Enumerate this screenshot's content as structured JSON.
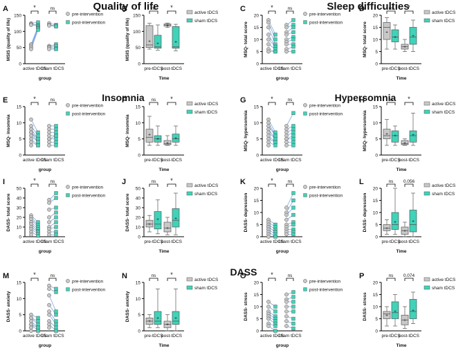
{
  "figure": {
    "section_titles": [
      "Quality of life",
      "Sleep difficulties",
      "Insomnia",
      "Hypersomnia",
      "DASS"
    ],
    "legend_paired": {
      "pre": "pre-intervention",
      "post": "post-intervention"
    },
    "legend_box": {
      "active": "active tDCS",
      "sham": "sham tDCS"
    },
    "colors": {
      "pre": "#c8c8c8",
      "post": "#3fd3b9",
      "line": "#7ea6e0",
      "edge": "#555555"
    }
  },
  "chart_data": [
    {
      "panel": "A",
      "type": "scatter",
      "title": "Quality of life",
      "ylabel": "MSIS (quality of life)",
      "xlabel": "group",
      "ylim": [
        0,
        150
      ],
      "yticks": [
        0,
        50,
        100,
        150
      ],
      "groups": [
        "active tDCS",
        "sham tDCS"
      ],
      "series": [
        {
          "group": "active tDCS",
          "pre": [
            125,
            122,
            120,
            60,
            55,
            50,
            45
          ],
          "post": [
            128,
            120,
            117,
            115,
            112,
            110,
            105
          ]
        },
        {
          "group": "sham tDCS",
          "pre": [
            125,
            120,
            118,
            55,
            52,
            50,
            45
          ],
          "post": [
            120,
            118,
            115,
            60,
            55,
            48,
            45
          ]
        }
      ],
      "sig": [
        "*",
        "ns"
      ]
    },
    {
      "panel": "B",
      "type": "box",
      "ylabel": "MSIS (quality of life)",
      "xlabel": "Time",
      "ylim": [
        0,
        150
      ],
      "yticks": [
        0,
        50,
        100,
        150
      ],
      "categories": [
        "pre-tDCS",
        "post-tDCS"
      ],
      "series": [
        {
          "name": "active tDCS",
          "boxes": [
            [
              45,
              50,
              58,
              118,
              125
            ],
            [
              112,
              116,
              120,
              123,
              126
            ]
          ]
        },
        {
          "name": "sham tDCS",
          "boxes": [
            [
              42,
              48,
              52,
              88,
              120
            ],
            [
              40,
              48,
              52,
              115,
              122
            ]
          ]
        }
      ],
      "means": [
        [
          70,
          62
        ],
        [
          118,
          68
        ]
      ],
      "sig": [
        "ns",
        "*"
      ]
    },
    {
      "panel": "C",
      "type": "scatter",
      "title": "Sleep difficulties",
      "ylabel": "MSQ- total score",
      "xlabel": "group",
      "ylim": [
        0,
        20
      ],
      "yticks": [
        0,
        5,
        10,
        15,
        20
      ],
      "groups": [
        "active tDCS",
        "sham tDCS"
      ],
      "series": [
        {
          "group": "active tDCS",
          "pre": [
            18,
            17,
            15,
            12,
            10,
            8,
            6,
            5
          ],
          "post": [
            12,
            10,
            8,
            7,
            7,
            6,
            5,
            5
          ]
        },
        {
          "group": "sham tDCS",
          "pre": [
            16,
            15,
            13,
            12,
            10,
            9,
            8,
            6,
            5
          ],
          "post": [
            18,
            16,
            15,
            13,
            11,
            10,
            8,
            7,
            5
          ]
        }
      ],
      "sig": [
        "*",
        "ns"
      ]
    },
    {
      "panel": "D",
      "type": "box",
      "ylabel": "MSQ- total score",
      "xlabel": "Time",
      "ylim": [
        0,
        20
      ],
      "yticks": [
        0,
        5,
        10,
        15,
        20
      ],
      "categories": [
        "pre-tDCS",
        "post-tDCS"
      ],
      "series": [
        {
          "name": "active tDCS",
          "boxes": [
            [
              6,
              10,
              15,
              17,
              19
            ],
            [
              5,
              6,
              7,
              8,
              10
            ]
          ]
        },
        {
          "name": "sham tDCS",
          "boxes": [
            [
              6,
              9,
              11,
              14,
              16
            ],
            [
              5,
              8,
              11,
              15,
              18
            ]
          ]
        }
      ],
      "means": [
        [
          13,
          11
        ],
        [
          7,
          11.5
        ]
      ],
      "sig": [
        "ns",
        "*"
      ]
    },
    {
      "panel": "E",
      "type": "scatter",
      "title": "Insomnia",
      "ylabel": "MSQ- insomnia",
      "xlabel": "group",
      "ylim": [
        0,
        15
      ],
      "yticks": [
        0,
        5,
        10,
        15
      ],
      "groups": [
        "active tDCS",
        "sham tDCS"
      ],
      "series": [
        {
          "group": "active tDCS",
          "pre": [
            11,
            9,
            8,
            7,
            7,
            6,
            5,
            4,
            3
          ],
          "post": [
            7,
            6,
            5,
            5,
            4,
            4,
            3,
            3
          ]
        },
        {
          "group": "sham tDCS",
          "pre": [
            9,
            8,
            7,
            6,
            5,
            5,
            4,
            3
          ],
          "post": [
            9,
            8,
            7,
            6,
            6,
            5,
            4,
            3
          ]
        }
      ],
      "sig": [
        "*",
        "ns"
      ]
    },
    {
      "panel": "F",
      "type": "box",
      "ylabel": "MSQ- insomnia",
      "xlabel": "Time",
      "ylim": [
        0,
        15
      ],
      "yticks": [
        0,
        5,
        10,
        15
      ],
      "categories": [
        "pre-tDCS",
        "post-tDCS"
      ],
      "series": [
        {
          "name": "active tDCS",
          "boxes": [
            [
              3,
              4,
              5.5,
              8,
              12
            ],
            [
              3,
              3.2,
              3.5,
              4.5,
              6
            ]
          ]
        },
        {
          "name": "sham tDCS",
          "boxes": [
            [
              3,
              4,
              5,
              6,
              9
            ],
            [
              3,
              4,
              5,
              6.5,
              9
            ]
          ]
        }
      ],
      "means": [
        [
          6.3,
          5
        ],
        [
          3.8,
          5.3
        ]
      ],
      "sig": [
        "ns",
        "*"
      ]
    },
    {
      "panel": "G",
      "type": "scatter",
      "title": "Hypersomnia",
      "ylabel": "MSQ- hypersomnia",
      "xlabel": "group",
      "ylim": [
        0,
        15
      ],
      "yticks": [
        0,
        5,
        10,
        15
      ],
      "groups": [
        "active tDCS",
        "sham tDCS"
      ],
      "series": [
        {
          "group": "active tDCS",
          "pre": [
            11,
            10,
            9,
            8,
            7,
            6,
            5,
            4,
            3
          ],
          "post": [
            7,
            6,
            6,
            5,
            5,
            4,
            4,
            3
          ]
        },
        {
          "group": "sham tDCS",
          "pre": [
            9,
            8,
            7,
            6,
            5,
            5,
            4,
            3
          ],
          "post": [
            13,
            9,
            8,
            7,
            6,
            5,
            4,
            3
          ]
        }
      ],
      "sig": [
        "*",
        "ns"
      ]
    },
    {
      "panel": "H",
      "type": "box",
      "ylabel": "MSQ- hypersomnia",
      "xlabel": "Time",
      "ylim": [
        0,
        15
      ],
      "yticks": [
        0,
        5,
        10,
        15
      ],
      "categories": [
        "pre-tDCS",
        "post-tDCS"
      ],
      "series": [
        {
          "name": "active tDCS",
          "boxes": [
            [
              3,
              5,
              6,
              8,
              11
            ],
            [
              3,
              3.2,
              3.5,
              4.5,
              5
            ]
          ]
        },
        {
          "name": "sham tDCS",
          "boxes": [
            [
              3,
              4,
              6,
              7.5,
              9
            ],
            [
              3,
              4,
              6,
              7.5,
              13
            ]
          ]
        }
      ],
      "means": [
        [
          6.5,
          6
        ],
        [
          3.8,
          6.2
        ]
      ],
      "sig": [
        "ns",
        "*"
      ]
    },
    {
      "panel": "I",
      "type": "scatter",
      "title": "DASS",
      "ylabel": "DASS- total score",
      "xlabel": "group",
      "ylim": [
        0,
        50
      ],
      "yticks": [
        0,
        10,
        20,
        30,
        40,
        50
      ],
      "groups": [
        "active tDCS",
        "sham tDCS"
      ],
      "series": [
        {
          "group": "active tDCS",
          "pre": [
            22,
            20,
            18,
            15,
            13,
            10,
            8,
            5,
            2
          ],
          "post": [
            15,
            12,
            10,
            8,
            6,
            5,
            3,
            1
          ]
        },
        {
          "group": "sham tDCS",
          "pre": [
            38,
            35,
            28,
            20,
            15,
            10,
            8,
            5,
            2
          ],
          "post": [
            45,
            40,
            30,
            25,
            20,
            15,
            10,
            5,
            2
          ]
        }
      ],
      "sig": [
        "*",
        "ns"
      ]
    },
    {
      "panel": "J",
      "type": "box",
      "ylabel": "DASS- total score",
      "xlabel": "Time",
      "ylim": [
        0,
        50
      ],
      "yticks": [
        0,
        10,
        20,
        30,
        40,
        50
      ],
      "categories": [
        "pre-tDCS",
        "post-tDCS"
      ],
      "series": [
        {
          "name": "active tDCS",
          "boxes": [
            [
              5,
              10,
              13,
              17,
              22
            ],
            [
              2,
              5,
              9,
              15,
              20
            ]
          ]
        },
        {
          "name": "sham tDCS",
          "boxes": [
            [
              3,
              8,
              13,
              26,
              38
            ],
            [
              2,
              10,
              17,
              29,
              45
            ]
          ]
        }
      ],
      "means": [
        [
          13,
          18
        ],
        [
          9,
          19
        ]
      ],
      "sig": [
        "ns",
        "*"
      ]
    },
    {
      "panel": "K",
      "type": "scatter",
      "ylabel": "DASS- depression",
      "xlabel": "group",
      "ylim": [
        0,
        20
      ],
      "yticks": [
        0,
        5,
        10,
        15,
        20
      ],
      "groups": [
        "active tDCS",
        "sham tDCS"
      ],
      "series": [
        {
          "group": "active tDCS",
          "pre": [
            7,
            6,
            5,
            4,
            4,
            3,
            2,
            1,
            0
          ],
          "post": [
            5,
            4,
            3,
            2,
            2,
            1,
            0
          ]
        },
        {
          "group": "sham tDCS",
          "pre": [
            12,
            10,
            9,
            7,
            5,
            4,
            3,
            2,
            1
          ],
          "post": [
            18,
            15,
            12,
            9,
            6,
            5,
            3,
            2,
            1
          ]
        }
      ],
      "sig": [
        "*",
        "ns"
      ]
    },
    {
      "panel": "L",
      "type": "box",
      "ylabel": "DASS- depression",
      "xlabel": "Time",
      "ylim": [
        0,
        20
      ],
      "yticks": [
        0,
        5,
        10,
        15,
        20
      ],
      "categories": [
        "pre-tDCS",
        "post-tDCS"
      ],
      "series": [
        {
          "name": "active tDCS",
          "boxes": [
            [
              1,
              2.5,
              3.5,
              5,
              7
            ],
            [
              0,
              1,
              2.5,
              4,
              6
            ]
          ]
        },
        {
          "name": "sham tDCS",
          "boxes": [
            [
              1,
              3,
              5,
              10,
              20
            ],
            [
              0,
              2,
              5,
              11,
              18
            ]
          ]
        }
      ],
      "means": [
        [
          3.5,
          6
        ],
        [
          2.5,
          6.5
        ]
      ],
      "sig": [
        "ns",
        "0.056"
      ]
    },
    {
      "panel": "M",
      "type": "scatter",
      "ylabel": "DASS- anxiety",
      "xlabel": "group",
      "ylim": [
        0,
        15
      ],
      "yticks": [
        0,
        5,
        10,
        15
      ],
      "groups": [
        "active tDCS",
        "sham tDCS"
      ],
      "series": [
        {
          "group": "active tDCS",
          "pre": [
            5,
            4,
            4,
            3,
            2,
            2,
            1,
            1,
            0
          ],
          "post": [
            4,
            3,
            2,
            1,
            1,
            0
          ]
        },
        {
          "group": "sham tDCS",
          "pre": [
            14,
            13,
            11,
            8,
            6,
            5,
            3,
            2,
            1
          ],
          "post": [
            13,
            12,
            6,
            5,
            3,
            2,
            1,
            0
          ]
        }
      ],
      "sig": [
        "*",
        "ns"
      ]
    },
    {
      "panel": "N",
      "type": "box",
      "ylabel": "DASS- anxiety",
      "xlabel": "Time",
      "ylim": [
        0,
        15
      ],
      "yticks": [
        0,
        5,
        10,
        15
      ],
      "categories": [
        "pre-tDCS",
        "post-tDCS"
      ],
      "series": [
        {
          "name": "active tDCS",
          "boxes": [
            [
              1,
              2,
              3,
              4,
              5
            ],
            [
              0,
              1,
              2,
              3,
              5
            ]
          ]
        },
        {
          "name": "sham tDCS",
          "boxes": [
            [
              1,
              2,
              3,
              6,
              13
            ],
            [
              0,
              2,
              3,
              6,
              13
            ]
          ]
        }
      ],
      "means": [
        [
          3,
          4
        ],
        [
          2,
          4
        ]
      ],
      "sig": [
        "ns",
        "*"
      ]
    },
    {
      "panel": "O",
      "type": "scatter",
      "ylabel": "DASS- stress",
      "xlabel": "group",
      "ylim": [
        0,
        20
      ],
      "yticks": [
        0,
        5,
        10,
        15,
        20
      ],
      "groups": [
        "active tDCS",
        "sham tDCS"
      ],
      "series": [
        {
          "group": "active tDCS",
          "pre": [
            12,
            10,
            8,
            7,
            6,
            5,
            3,
            2
          ],
          "post": [
            10,
            8,
            6,
            5,
            4,
            3,
            2,
            0
          ]
        },
        {
          "group": "sham tDCS",
          "pre": [
            15,
            13,
            12,
            10,
            8,
            6,
            4,
            2
          ],
          "post": [
            16,
            14,
            12,
            10,
            8,
            5,
            3,
            1
          ]
        }
      ],
      "sig": [
        "*",
        "ns"
      ]
    },
    {
      "panel": "P",
      "type": "box",
      "ylabel": "DASS- stress",
      "xlabel": "Time",
      "ylim": [
        0,
        20
      ],
      "yticks": [
        0,
        5,
        10,
        15,
        20
      ],
      "categories": [
        "pre-tDCS",
        "post-tDCS"
      ],
      "series": [
        {
          "name": "active tDCS",
          "boxes": [
            [
              2,
              5,
              7,
              8,
              10
            ],
            [
              1,
              2.5,
              4.5,
              6.5,
              10
            ]
          ]
        },
        {
          "name": "sham tDCS",
          "boxes": [
            [
              2,
              5,
              7.5,
              12,
              15
            ],
            [
              3,
              5,
              8,
              13,
              16
            ]
          ]
        }
      ],
      "means": [
        [
          6.5,
          8
        ],
        [
          4.5,
          8.5
        ]
      ],
      "sig": [
        "ns",
        "0.074"
      ]
    }
  ]
}
